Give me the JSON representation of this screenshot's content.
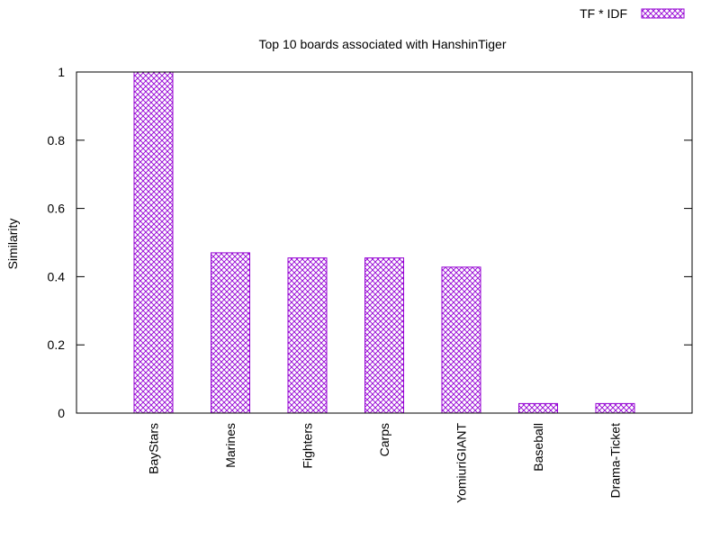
{
  "chart_data": {
    "type": "bar",
    "title": "Top 10 boards associated with HanshinTiger",
    "xlabel": "",
    "ylabel": "Similarity",
    "categories": [
      "BayStars",
      "Marines",
      "Fighters",
      "Carps",
      "YomiuriGIANT",
      "Baseball",
      "Drama-Ticket"
    ],
    "series": [
      {
        "name": "TF * IDF",
        "values": [
          1.0,
          0.47,
          0.455,
          0.455,
          0.428,
          0.028,
          0.028
        ]
      }
    ],
    "ylim": [
      0,
      1
    ],
    "yticks": [
      "0",
      "0.2",
      "0.4",
      "0.6",
      "0.8",
      "1"
    ],
    "ytick_values": [
      0,
      0.2,
      0.4,
      0.6,
      0.8,
      1
    ],
    "grid": false,
    "legend_position": "top-right",
    "bar_color": "#9400d3",
    "bar_pattern": "crosshatch"
  }
}
